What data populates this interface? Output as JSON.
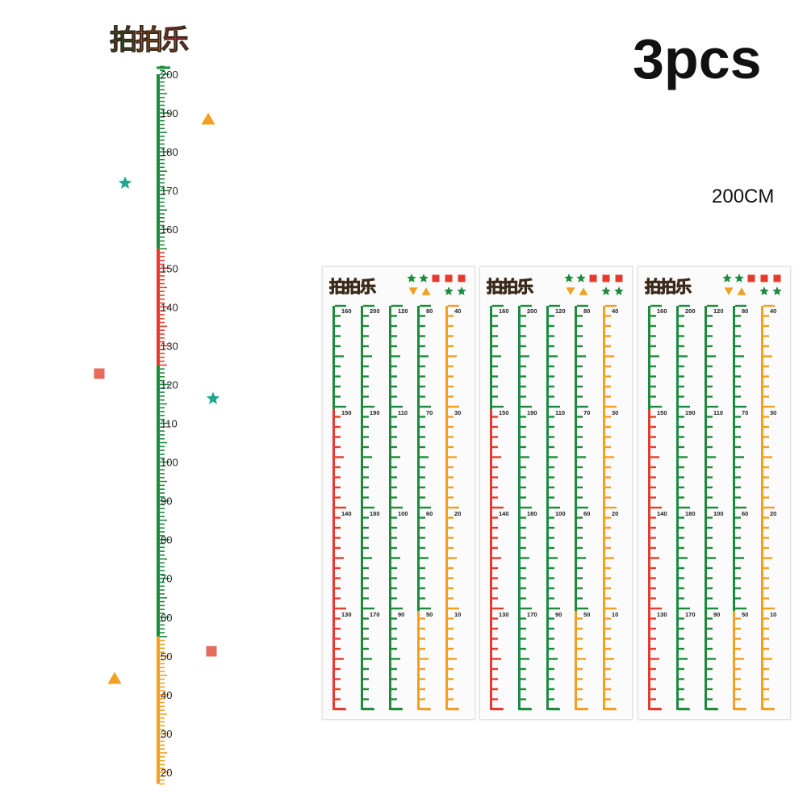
{
  "header": {
    "logo_text": "拍拍乐",
    "quantity_label": "3pcs",
    "size_label": "200CM"
  },
  "colors": {
    "green": "#1e8a3c",
    "red": "#e53b2e",
    "orange": "#f2a020",
    "teal": "#1fa88e",
    "salmon": "#e86a5a",
    "logo_text": [
      "#1f7a3a",
      "#e6892b",
      "#e3423a"
    ]
  },
  "main_ruler": {
    "labels": [
      200,
      190,
      180,
      170,
      160,
      150,
      140,
      130,
      120,
      110,
      100,
      90,
      80,
      70,
      60,
      50,
      40,
      30,
      20
    ],
    "segments": [
      {
        "from": 155,
        "to": 200,
        "color": "green"
      },
      {
        "from": 125,
        "to": 155,
        "color": "red"
      },
      {
        "from": 55,
        "to": 125,
        "color": "green"
      },
      {
        "from": 17,
        "to": 55,
        "color": "orange"
      }
    ],
    "decorations": [
      "triangle",
      "star",
      "square",
      "star",
      "square",
      "triangle"
    ]
  },
  "sheets": {
    "count": 3,
    "decorations_row1": [
      "star",
      "star",
      "square",
      "square",
      "square"
    ],
    "decorations_row2": [
      "triangle",
      "triangle",
      "star",
      "star"
    ],
    "strips": [
      {
        "labels": [
          "160",
          "150",
          "140",
          "130"
        ],
        "colors": [
          "green",
          "red",
          "red",
          "red"
        ]
      },
      {
        "labels": [
          "200",
          "190",
          "180",
          "170"
        ],
        "colors": [
          "green",
          "green",
          "green",
          "green"
        ]
      },
      {
        "labels": [
          "120",
          "110",
          "100",
          "90"
        ],
        "colors": [
          "green",
          "green",
          "green",
          "green"
        ]
      },
      {
        "labels": [
          "80",
          "70",
          "60",
          "50"
        ],
        "colors": [
          "green",
          "green",
          "green",
          "orange"
        ]
      },
      {
        "labels": [
          "40",
          "30",
          "20",
          "10"
        ],
        "colors": [
          "orange",
          "orange",
          "orange",
          "orange"
        ]
      }
    ]
  }
}
